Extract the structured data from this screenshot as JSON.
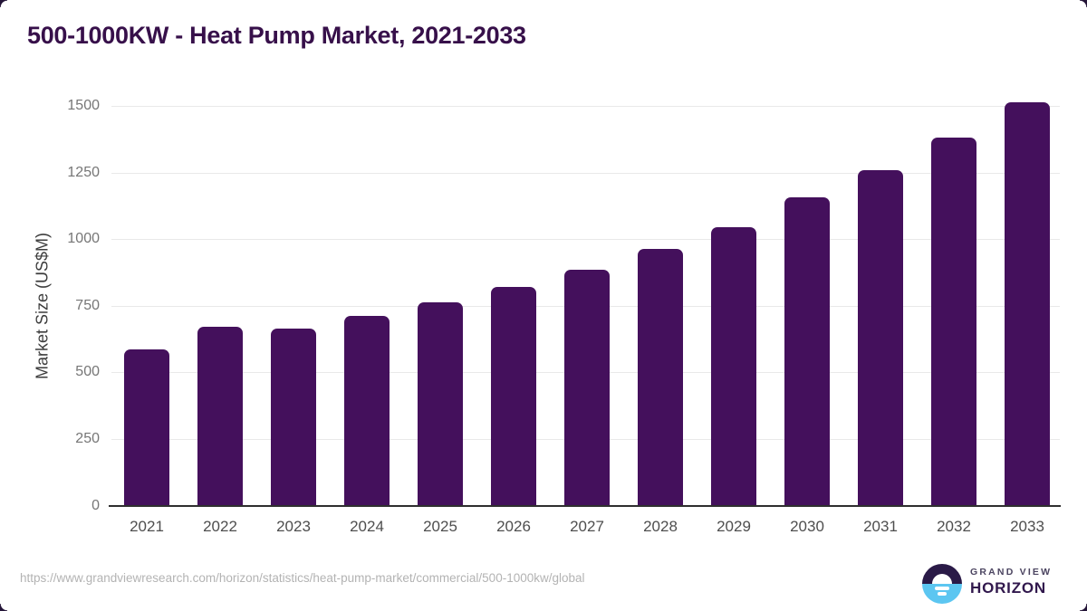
{
  "header": {
    "title": "500-1000KW - Heat Pump Market, 2021-2033"
  },
  "chart_data": {
    "type": "bar",
    "title": "500-1000KW - Heat Pump Market, 2021-2033",
    "categories": [
      "2021",
      "2022",
      "2023",
      "2024",
      "2025",
      "2026",
      "2027",
      "2028",
      "2029",
      "2030",
      "2031",
      "2032",
      "2033"
    ],
    "values": [
      585,
      670,
      662,
      712,
      762,
      820,
      885,
      962,
      1045,
      1155,
      1258,
      1380,
      1515
    ],
    "xlabel": "",
    "ylabel": "Market Size (US$M)",
    "ylim": [
      0,
      1500
    ],
    "yticks": [
      0,
      250,
      500,
      750,
      1000,
      1250,
      1500
    ],
    "grid": "horizontal",
    "legend": "none",
    "bar_color": "#44105c"
  },
  "footer": {
    "url": "https://www.grandviewresearch.com/horizon/statistics/heat-pump-market/commercial/500-1000kw/global",
    "logo": {
      "line1": "GRAND VIEW",
      "line2": "HORIZON"
    }
  },
  "colors": {
    "bar": "#44105c",
    "title": "#37104a",
    "gridline": "#e9e9e9",
    "axis_line": "#2f2f2f",
    "tick_label": "#767676",
    "x_label": "#4e4e4e",
    "url_text": "#b3b3b3",
    "logo_navy": "#2a1a47",
    "logo_blue": "#5cc6f1",
    "logo_horizon_text": "#31184d"
  }
}
